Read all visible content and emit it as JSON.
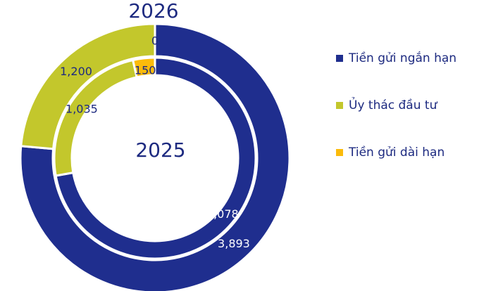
{
  "chart_data": {
    "type": "donut",
    "title": "2026",
    "center_label": "2025",
    "categories": [
      "Tiền gửi ngắn hạn",
      "Ủy thác đầu tư",
      "Tiền gửi dài hạn"
    ],
    "colors": [
      "#1f2e8e",
      "#c3c72c",
      "#fbbb0b"
    ],
    "rings": [
      {
        "name": "2026",
        "values": [
          3893,
          1200,
          0
        ],
        "value_labels": [
          "3,893",
          "1,200",
          "0"
        ]
      },
      {
        "name": "2025",
        "values": [
          3078,
          1035,
          150
        ],
        "value_labels": [
          "3,078",
          "1,035",
          "150"
        ]
      }
    ],
    "legend": "right"
  }
}
